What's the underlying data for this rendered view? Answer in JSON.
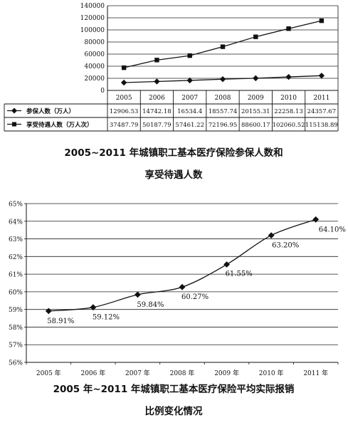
{
  "chart_data": [
    {
      "type": "line",
      "categories": [
        "2005",
        "2006",
        "2007",
        "2008",
        "2009",
        "2010",
        "2011"
      ],
      "series": [
        {
          "name": "参保人数（万人）",
          "marker": "diamond",
          "values": [
            12906.53,
            14742.18,
            16534.4,
            18557.74,
            20155.31,
            22258.13,
            24357.67
          ],
          "labels": [
            "12906.53",
            "14742.18",
            "16534.4",
            "18557.74",
            "20155.31",
            "22258.13",
            "24357.67"
          ]
        },
        {
          "name": "享受待遇人数（万人次）",
          "marker": "square",
          "values": [
            37487.79,
            50187.79,
            57461.22,
            72196.95,
            88600.17,
            102060.52,
            115138.89
          ],
          "labels": [
            "37487.79",
            "50187.79",
            "57461.22",
            "72196.95",
            "88600.17",
            "102060.52",
            "115138.89"
          ]
        }
      ],
      "ylim": [
        0,
        140000
      ],
      "yticks": [
        "0",
        "20000",
        "40000",
        "60000",
        "80000",
        "100000",
        "120000",
        "140000"
      ],
      "grid": true,
      "legend": "data table below chart",
      "title": [
        "2005~2011 年城镇职工基本医疗保险参保人数和",
        "享受待遇人数"
      ]
    },
    {
      "type": "line",
      "categories": [
        "2005 年",
        "2006 年",
        "2007 年",
        "2008 年",
        "2009 年",
        "2010 年",
        "2011 年"
      ],
      "series": [
        {
          "name": "",
          "marker": "diamond",
          "values": [
            58.91,
            59.12,
            59.84,
            60.27,
            61.55,
            63.2,
            64.1
          ],
          "labels": [
            "58.91%",
            "59.12%",
            "59.84%",
            "60.27%",
            "61.55%",
            "63.20%",
            "64.10%"
          ]
        }
      ],
      "ylim": [
        56,
        65
      ],
      "yticks": [
        "56%",
        "57%",
        "58%",
        "59%",
        "60%",
        "61%",
        "62%",
        "63%",
        "64%",
        "65%"
      ],
      "grid": true,
      "title": [
        "2005 年~2011 年城镇职工基本医疗保险平均实际报销",
        "比例变化情况"
      ]
    }
  ]
}
